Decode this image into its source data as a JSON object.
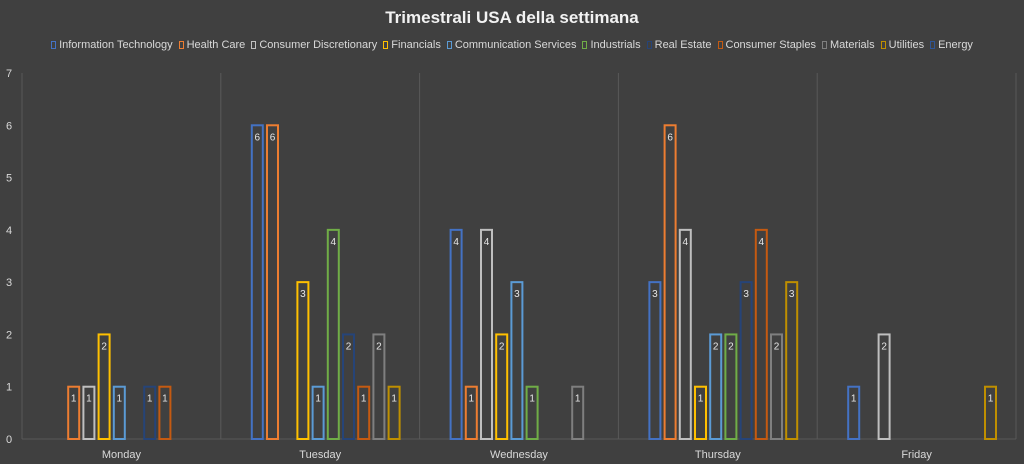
{
  "chart_data": {
    "type": "bar",
    "title": "Trimestrali USA della settimana",
    "categories": [
      "Monday",
      "Tuesday",
      "Wednesday",
      "Thursday",
      "Friday"
    ],
    "ylim": [
      0,
      7
    ],
    "yticks": [
      "0",
      "1",
      "2",
      "3",
      "4",
      "5",
      "6",
      "7"
    ],
    "grid": "vertical category separators",
    "legend_position": "top",
    "series": [
      {
        "name": "Information Technology",
        "color": "#4472c4",
        "values": [
          null,
          6,
          4,
          3,
          1
        ]
      },
      {
        "name": "Health Care",
        "color": "#ed7d31",
        "values": [
          1,
          6,
          1,
          6,
          null
        ]
      },
      {
        "name": "Consumer Discretionary",
        "color": "#bfbfbf",
        "values": [
          1,
          null,
          4,
          4,
          2
        ]
      },
      {
        "name": "Financials",
        "color": "#ffc000",
        "values": [
          2,
          3,
          2,
          1,
          null
        ]
      },
      {
        "name": "Communication Services",
        "color": "#5b9bd5",
        "values": [
          1,
          1,
          3,
          2,
          null
        ]
      },
      {
        "name": "Industrials",
        "color": "#70ad47",
        "values": [
          null,
          4,
          1,
          2,
          null
        ]
      },
      {
        "name": "Real Estate",
        "color": "#264478",
        "values": [
          1,
          2,
          null,
          3,
          null
        ]
      },
      {
        "name": "Consumer Staples",
        "color": "#c55a11",
        "values": [
          1,
          1,
          null,
          4,
          null
        ]
      },
      {
        "name": "Materials",
        "color": "#7f7f7f",
        "values": [
          null,
          2,
          1,
          2,
          null
        ]
      },
      {
        "name": "Utilities",
        "color": "#bf8f00",
        "values": [
          null,
          1,
          null,
          3,
          1
        ]
      },
      {
        "name": "Energy",
        "color": "#2f5597",
        "values": [
          null,
          null,
          null,
          null,
          null
        ]
      }
    ]
  }
}
